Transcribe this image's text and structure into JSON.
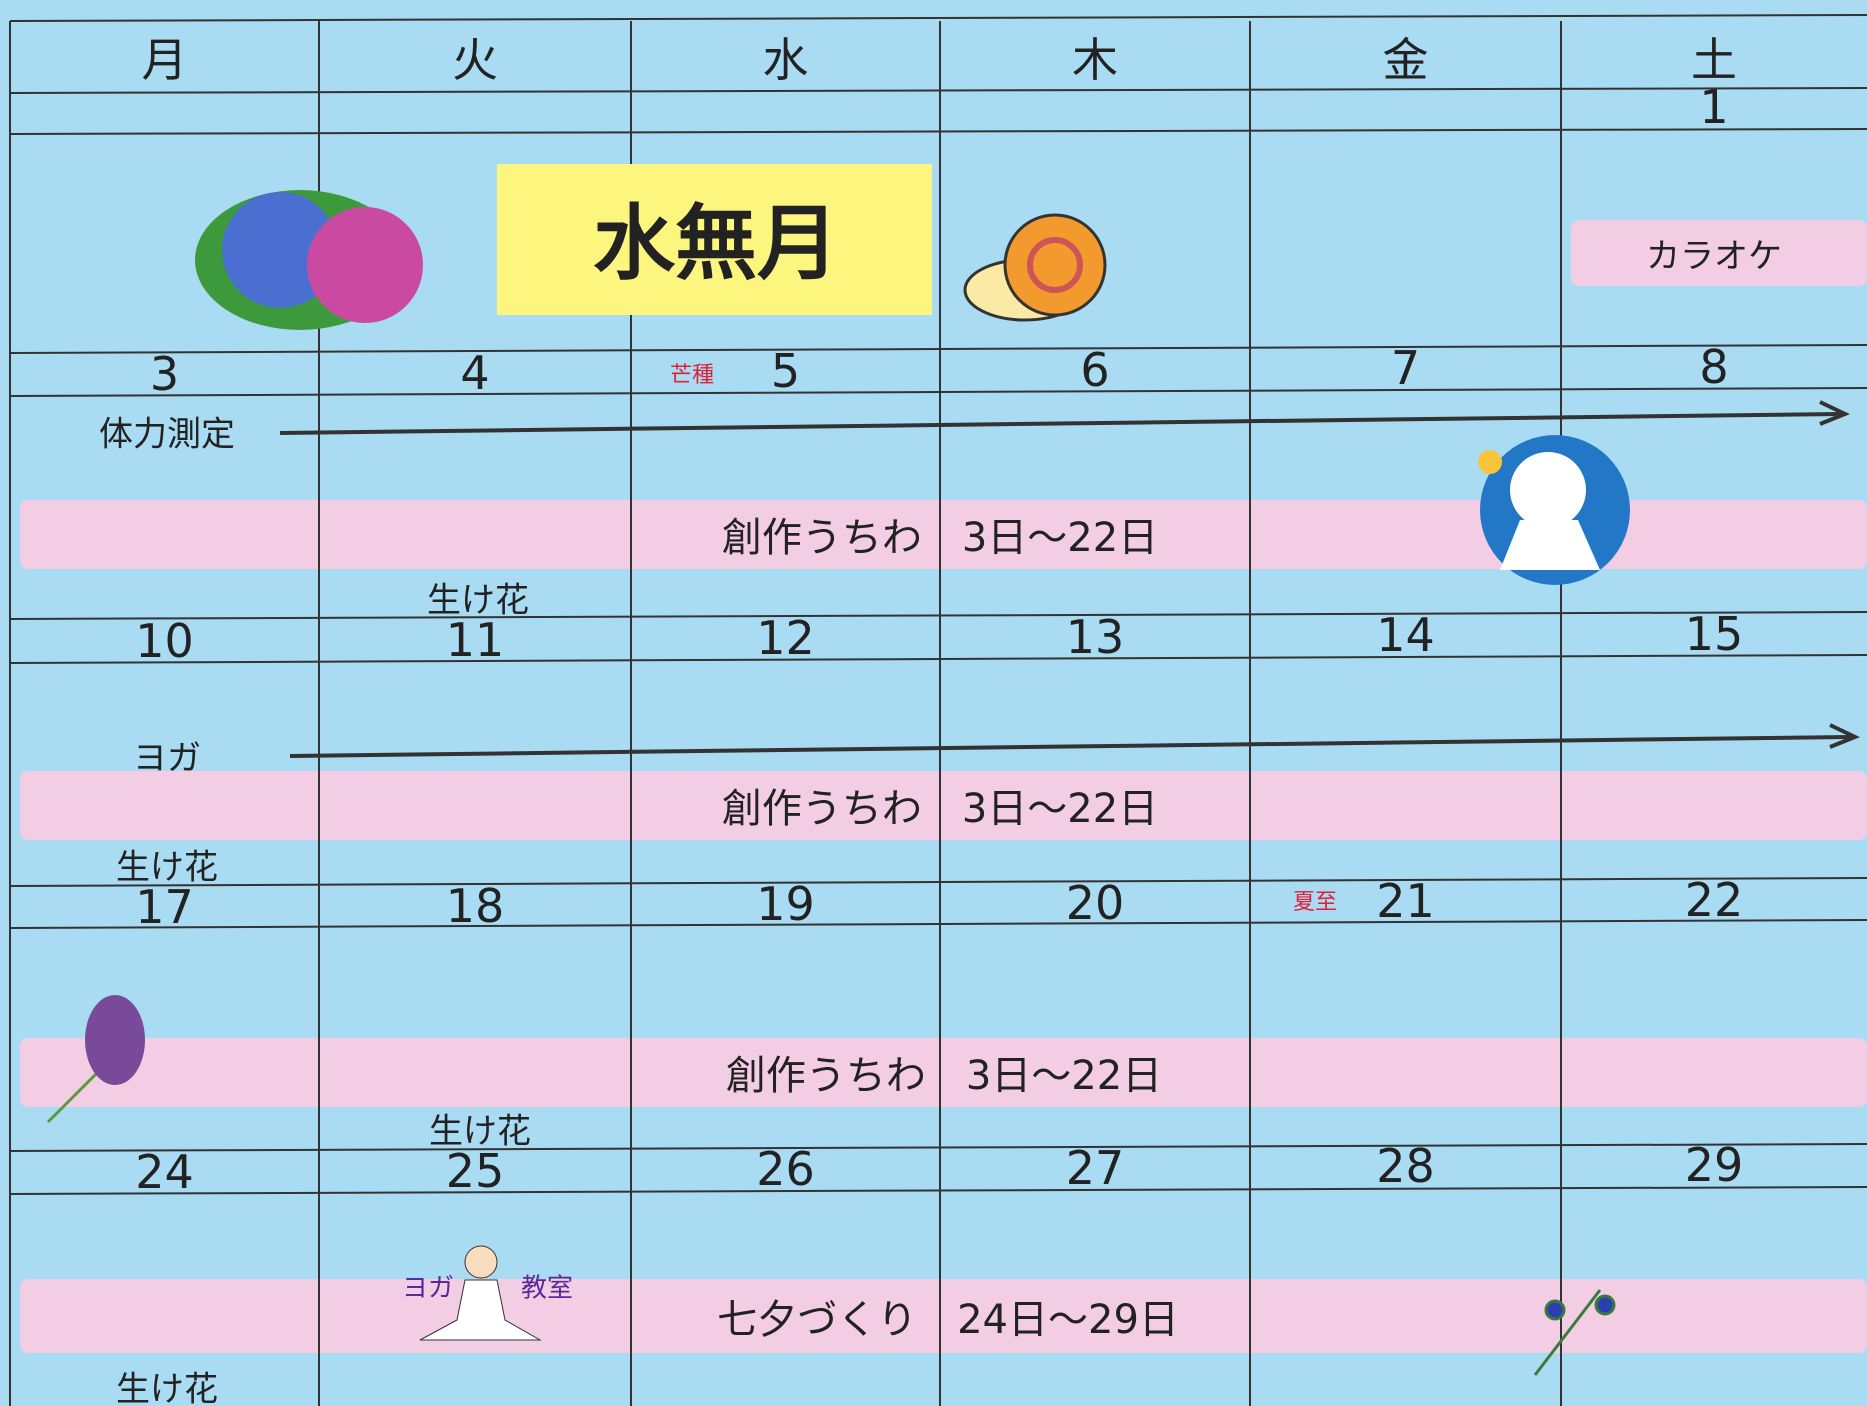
{
  "weekdays": [
    "月",
    "火",
    "水",
    "木",
    "金",
    "土"
  ],
  "title": "水無月",
  "weeks": [
    {
      "days": [
        null,
        null,
        null,
        null,
        null,
        1
      ]
    },
    {
      "days": [
        3,
        4,
        5,
        6,
        7,
        8
      ]
    },
    {
      "days": [
        10,
        11,
        12,
        13,
        14,
        15
      ]
    },
    {
      "days": [
        17,
        18,
        19,
        20,
        21,
        22
      ]
    },
    {
      "days": [
        24,
        25,
        26,
        27,
        28,
        29
      ]
    }
  ],
  "events": {
    "karaoke": "カラオケ",
    "bousyu": "芒種",
    "geshi": "夏至",
    "fitness": "体力測定",
    "yoga": "ヨガ",
    "band_1": "創作うちわ　3日～22日",
    "band_2": "創作うちわ　3日～22日",
    "band_3": "創作うちわ　3日～22日",
    "band_4": "七夕づくり　24日～29日",
    "ikebana_1": "生け花",
    "ikebana_2": "生け花",
    "ikebana_3": "生け花",
    "ikebana_4": "生け花",
    "yoga_class_1": "ヨガ",
    "yoga_class_2": "教室"
  }
}
